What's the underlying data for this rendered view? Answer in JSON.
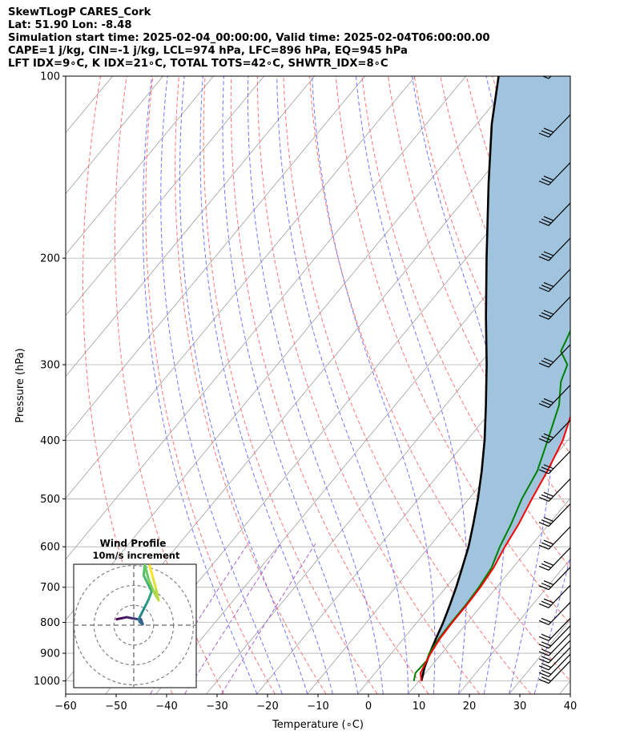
{
  "header": {
    "line1": "SkewTLogP CARES_Cork",
    "line2": "Lat: 51.90   Lon: -8.48",
    "line3": "Simulation start time: 2025-02-04_00:00:00, Valid time: 2025-02-04T06:00:00.00",
    "line4": "CAPE=1 j/kg, CIN=-1 j/kg, LCL=974 hPa, LFC=896 hPa, EQ=945 hPa",
    "line5": "LFT IDX=9∘C, K IDX=21∘C, TOTAL TOTS=42∘C, SHWTR_IDX=8∘C"
  },
  "chart_data": [
    {
      "type": "line",
      "subtype": "skew-t log-p",
      "xlabel": "Temperature (∘C)",
      "ylabel": "Pressure (hPa)",
      "xlim": [
        -60,
        40
      ],
      "ylim": [
        1050,
        100
      ],
      "yscale": "log",
      "x_ticks": [
        "−60",
        "−50",
        "−40",
        "−30",
        "−20",
        "−10",
        "0",
        "10",
        "20",
        "30",
        "40"
      ],
      "y_ticks": [
        "100",
        "200",
        "300",
        "400",
        "500",
        "600",
        "700",
        "800",
        "900",
        "1000"
      ],
      "grid": true,
      "colors": {
        "temperature": "#ff0000",
        "dewpoint": "#008000",
        "parcel": "#000000",
        "cape_fill": "#a0c4de",
        "dry_adiabats": "#ff6666",
        "moist_adiabats": "#6666ff",
        "mixing_ratio": "#a050c8",
        "isotherms": "#a0a0a0"
      },
      "series": [
        {
          "name": "temperature",
          "points": [
            [
              1000,
              10.5
            ],
            [
              970,
              9.0
            ],
            [
              925,
              8.2
            ],
            [
              900,
              7.8
            ],
            [
              850,
              7.2
            ],
            [
              800,
              7.0
            ],
            [
              750,
              7.0
            ],
            [
              700,
              6.8
            ],
            [
              650,
              6.2
            ],
            [
              600,
              5.0
            ],
            [
              550,
              4.0
            ],
            [
              500,
              2.5
            ],
            [
              450,
              1.0
            ],
            [
              400,
              -1.0
            ],
            [
              350,
              -4.5
            ],
            [
              300,
              -7.5
            ],
            [
              270,
              -10.0
            ],
            [
              250,
              -12.0
            ],
            [
              225,
              -12.5
            ],
            [
              210,
              -12.0
            ],
            [
              200,
              -11.0
            ],
            [
              185,
              -7.5
            ],
            [
              175,
              -5.5
            ],
            [
              165,
              -3.0
            ],
            [
              150,
              0.0
            ],
            [
              140,
              2.0
            ],
            [
              130,
              3.5
            ],
            [
              120,
              5.5
            ],
            [
              110,
              7.5
            ],
            [
              100,
              10.0
            ]
          ]
        },
        {
          "name": "dewpoint",
          "points": [
            [
              1000,
              9.0
            ],
            [
              970,
              8.0
            ],
            [
              925,
              8.2
            ],
            [
              900,
              7.5
            ],
            [
              850,
              7.0
            ],
            [
              800,
              6.8
            ],
            [
              750,
              6.8
            ],
            [
              700,
              6.5
            ],
            [
              650,
              5.8
            ],
            [
              600,
              4.0
            ],
            [
              550,
              2.5
            ],
            [
              500,
              0.5
            ],
            [
              450,
              -1.0
            ],
            [
              400,
              -4.0
            ],
            [
              350,
              -7.5
            ],
            [
              320,
              -11.0
            ],
            [
              300,
              -12.5
            ],
            [
              285,
              -16.0
            ],
            [
              270,
              -17.0
            ],
            [
              250,
              -18.5
            ],
            [
              230,
              -19.0
            ],
            [
              210,
              -18.0
            ],
            [
              200,
              -17.0
            ],
            [
              185,
              -14.0
            ],
            [
              175,
              -12.5
            ],
            [
              165,
              -10.5
            ],
            [
              150,
              -11.0
            ],
            [
              140,
              -13.5
            ],
            [
              130,
              -10.5
            ],
            [
              120,
              -5.5
            ],
            [
              110,
              -0.5
            ],
            [
              100,
              3.0
            ]
          ]
        },
        {
          "name": "parcel",
          "points": [
            [
              1000,
              10.5
            ],
            [
              950,
              8.9
            ],
            [
              900,
              7.6
            ],
            [
              850,
              6.4
            ],
            [
              800,
              5.2
            ],
            [
              750,
              3.7
            ],
            [
              700,
              2.0
            ],
            [
              650,
              0.0
            ],
            [
              600,
              -2.2
            ],
            [
              550,
              -5.0
            ],
            [
              500,
              -8.2
            ],
            [
              450,
              -12.0
            ],
            [
              400,
              -16.5
            ],
            [
              350,
              -22.0
            ],
            [
              300,
              -28.5
            ],
            [
              250,
              -36.5
            ],
            [
              200,
              -46.0
            ],
            [
              150,
              -58.0
            ],
            [
              120,
              -67.0
            ],
            [
              100,
              -73.5
            ]
          ]
        }
      ],
      "wind_barbs_pressure_levels": [
        1000,
        975,
        950,
        925,
        900,
        875,
        850,
        800,
        750,
        700,
        650,
        600,
        550,
        500,
        450,
        400,
        350,
        300,
        250,
        225,
        200,
        175,
        150,
        125,
        100
      ]
    },
    {
      "type": "line",
      "subtype": "hodograph",
      "title": "Wind Profile",
      "subtitle": "10m/s increment",
      "rings_ms": [
        10,
        20,
        30
      ],
      "series": [
        {
          "name": "wind profile (u, v m/s)",
          "points": [
            [
              -8.5,
              3.0
            ],
            [
              -6.0,
              3.5
            ],
            [
              -3.5,
              4.0
            ],
            [
              -1.0,
              3.5
            ],
            [
              2.0,
              3.0
            ],
            [
              3.5,
              3.0
            ],
            [
              4.0,
              2.0
            ],
            [
              4.5,
              0.5
            ],
            [
              3.0,
              1.5
            ],
            [
              2.5,
              3.0
            ],
            [
              3.5,
              5.0
            ],
            [
              5.5,
              9.0
            ],
            [
              7.5,
              13.0
            ],
            [
              9.0,
              17.0
            ],
            [
              7.0,
              21.0
            ],
            [
              5.0,
              25.0
            ],
            [
              5.5,
              30.5
            ],
            [
              7.5,
              23.0
            ],
            [
              10.0,
              17.0
            ],
            [
              12.5,
              12.5
            ],
            [
              11.0,
              19.0
            ],
            [
              9.5,
              24.5
            ],
            [
              8.0,
              30.0
            ]
          ]
        }
      ]
    }
  ]
}
